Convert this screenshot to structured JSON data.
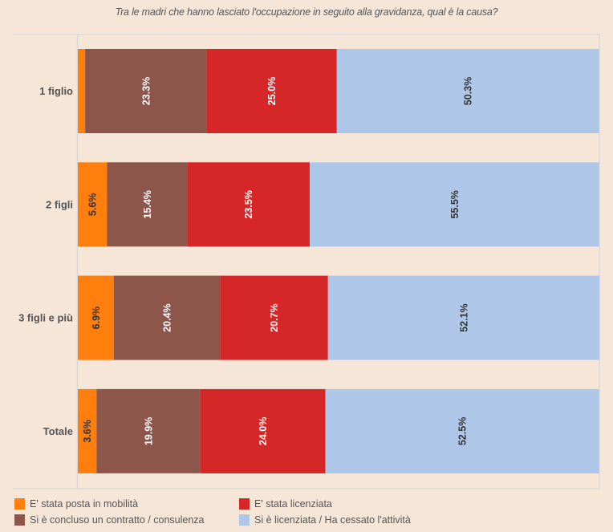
{
  "chart_data": {
    "type": "bar",
    "orientation": "horizontal",
    "stacked": true,
    "title": "Tra le madri che hanno lasciato l'occupazione in seguito alla gravidanza, qual è la causa?",
    "xlabel": "",
    "ylabel": "",
    "xlim": [
      0,
      100
    ],
    "unit": "%",
    "grid": false,
    "legend_position": "bottom",
    "categories": [
      "1 figlio",
      "2 figli",
      "3 figli e più",
      "Totale"
    ],
    "series": [
      {
        "name": "E' stata posta in mobilità",
        "color": "#ff7f0e",
        "label_color": "#333333",
        "values": [
          1.4,
          5.6,
          6.9,
          3.6
        ],
        "labels": [
          "",
          "5.6%",
          "6.9%",
          "3.6%"
        ]
      },
      {
        "name": "Si è concluso un contratto / consulenza",
        "color": "#8c564b",
        "label_color": "#ffffff",
        "values": [
          23.3,
          15.4,
          20.4,
          19.9
        ],
        "labels": [
          "23.3%",
          "15.4%",
          "20.4%",
          "19.9%"
        ]
      },
      {
        "name": "E' stata licenziata",
        "color": "#d62728",
        "label_color": "#ffffff",
        "values": [
          25.0,
          23.5,
          20.7,
          24.0
        ],
        "labels": [
          "25.0%",
          "23.5%",
          "20.7%",
          "24.0%"
        ]
      },
      {
        "name": "Si è licenziata / Ha cessato l'attività",
        "color": "#aec7e8",
        "label_color": "#333333",
        "values": [
          50.3,
          55.5,
          52.1,
          52.5
        ],
        "labels": [
          "50.3%",
          "55.5%",
          "52.1%",
          "52.5%"
        ]
      }
    ],
    "legend_order": [
      0,
      2,
      1,
      3
    ]
  }
}
